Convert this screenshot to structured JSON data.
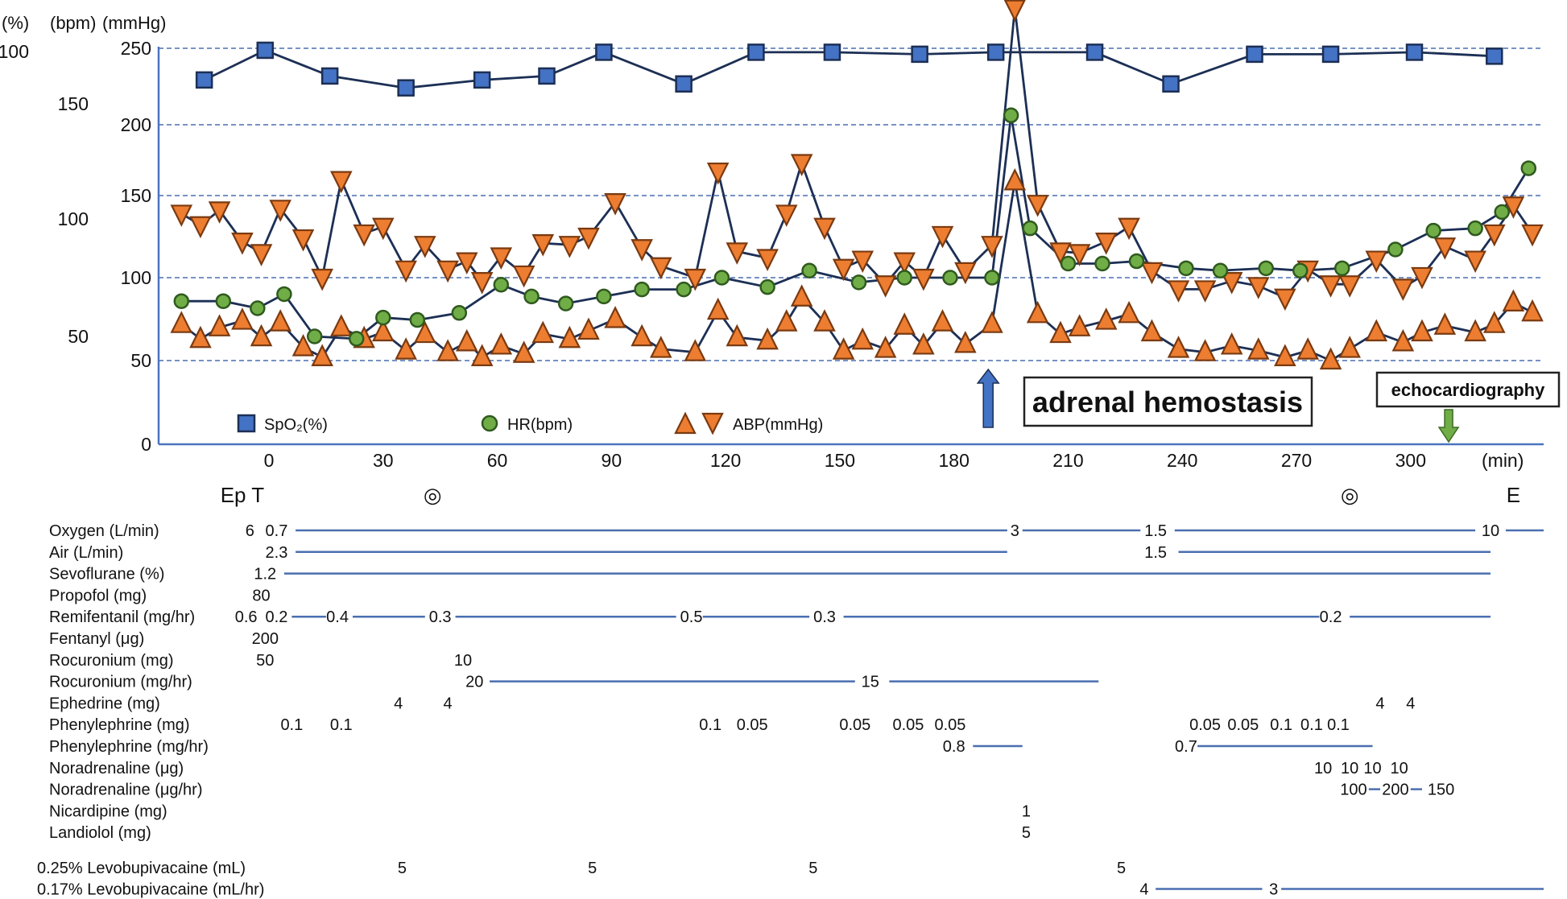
{
  "chart_data": {
    "type": "line",
    "title": "",
    "xlabel": "(min)",
    "x_unit_label": "(min)",
    "xlim": [
      -30,
      335
    ],
    "x_ticks": [
      0,
      30,
      60,
      90,
      120,
      150,
      180,
      210,
      240,
      270,
      300
    ],
    "x_tick_labels": [
      "0",
      "30",
      "60",
      "90",
      "120",
      "150",
      "180",
      "210",
      "240",
      "270",
      "300"
    ],
    "y_axes": [
      {
        "unit": "(%)",
        "tick_labels": [
          "100"
        ],
        "ticks": [
          100
        ]
      },
      {
        "unit": "(bpm)",
        "tick_labels": [
          "150",
          "100",
          "50"
        ],
        "ticks": [
          150,
          100,
          50
        ]
      },
      {
        "unit": "(mmHg)",
        "tick_labels": [
          "250",
          "200",
          "150",
          "100",
          "50",
          "0"
        ],
        "ticks": [
          250,
          200,
          150,
          100,
          50,
          0
        ]
      }
    ],
    "grid": true,
    "legend_position": "bottom-left",
    "legend": [
      {
        "label": "SpO₂(%)",
        "marker": "square",
        "color": "#4472c4"
      },
      {
        "label": "HR(bpm)",
        "marker": "circle",
        "color": "#70ad47"
      },
      {
        "label": "ABP(mmHg)",
        "marker": "triangle-up-down",
        "color": "#ed7d31"
      }
    ],
    "series": [
      {
        "name": "SpO2",
        "unit": "%",
        "x": [
          -17,
          -1,
          16,
          36,
          56,
          73,
          88,
          109,
          128,
          148,
          171,
          191,
          217,
          237,
          259,
          279,
          301,
          322
        ],
        "y": [
          92,
          99.5,
          93,
          90,
          92,
          93,
          99,
          91,
          99,
          99,
          98.5,
          99,
          99,
          91,
          98.5,
          98.5,
          99,
          98
        ]
      },
      {
        "name": "HR",
        "unit": "bpm",
        "x": [
          -23,
          -12,
          -3,
          4,
          12,
          23,
          30,
          39,
          50,
          61,
          69,
          78,
          88,
          98,
          109,
          119,
          131,
          142,
          155,
          167,
          179,
          190,
          195,
          200,
          210,
          219,
          228,
          241,
          250,
          262,
          271,
          282,
          296,
          306,
          317,
          324,
          331
        ],
        "y": [
          65,
          65,
          62,
          68,
          50,
          49,
          58,
          57,
          60,
          72,
          67,
          64,
          67,
          70,
          70,
          75,
          71,
          78,
          73,
          75,
          75,
          75,
          145,
          96,
          81,
          81,
          82,
          79,
          78,
          79,
          78,
          79,
          87,
          95,
          96,
          103,
          122
        ]
      },
      {
        "name": "ABP systolic",
        "unit": "mmHg",
        "x": [
          -23,
          -18,
          -13,
          -7,
          -2,
          3,
          9,
          14,
          19,
          25,
          30,
          36,
          41,
          47,
          52,
          56,
          61,
          67,
          72,
          79,
          84,
          91,
          98,
          103,
          112,
          118,
          123,
          131,
          136,
          140,
          146,
          151,
          156,
          162,
          167,
          172,
          177,
          183,
          190,
          196,
          202,
          208,
          213,
          220,
          226,
          232,
          239,
          246,
          253,
          260,
          267,
          273,
          279,
          284,
          291,
          298,
          303,
          309,
          317,
          322,
          327,
          332
        ],
        "y": [
          139,
          132,
          141,
          122,
          115,
          142,
          124,
          100,
          161,
          127,
          131,
          105,
          120,
          105,
          110,
          98,
          113,
          102,
          121,
          120,
          125,
          146,
          118,
          107,
          100,
          167,
          116,
          112,
          139,
          173,
          131,
          106,
          111,
          96,
          110,
          100,
          126,
          104,
          120,
          276,
          145,
          116,
          115,
          122,
          131,
          104,
          93,
          93,
          98,
          95,
          88,
          105,
          96,
          96,
          111,
          94,
          101,
          119,
          111,
          127,
          144,
          127
        ]
      },
      {
        "name": "ABP diastolic",
        "unit": "mmHg",
        "x": [
          -23,
          -18,
          -13,
          -7,
          -2,
          3,
          9,
          14,
          19,
          25,
          30,
          36,
          41,
          47,
          52,
          56,
          61,
          67,
          72,
          79,
          84,
          91,
          98,
          103,
          112,
          118,
          123,
          131,
          136,
          140,
          146,
          151,
          156,
          162,
          167,
          172,
          177,
          183,
          190,
          196,
          202,
          208,
          213,
          220,
          226,
          232,
          239,
          246,
          253,
          260,
          267,
          273,
          279,
          284,
          291,
          298,
          303,
          309,
          317,
          322,
          327,
          332
        ],
        "y": [
          72,
          63,
          70,
          74,
          64,
          73,
          58,
          52,
          70,
          63,
          67,
          56,
          66,
          55,
          61,
          52,
          59,
          54,
          66,
          63,
          68,
          75,
          64,
          57,
          55,
          80,
          64,
          62,
          73,
          88,
          73,
          56,
          62,
          57,
          71,
          59,
          73,
          60,
          72,
          160,
          78,
          66,
          70,
          74,
          78,
          67,
          57,
          55,
          59,
          56,
          52,
          56,
          50,
          57,
          67,
          61,
          67,
          71,
          67,
          72,
          85,
          79
        ]
      }
    ],
    "annotations": [
      {
        "text": "adrenal hemostasis",
        "x": 189,
        "arrow": "up",
        "color": "#4472c4"
      },
      {
        "text": "echocardiography",
        "x": 310,
        "arrow": "down",
        "color": "#70ad47"
      }
    ],
    "events": [
      {
        "text": "Ep T",
        "x": -7
      },
      {
        "text": "◎",
        "x": 43
      },
      {
        "text": "◎",
        "x": 284
      },
      {
        "text": "E",
        "x": 327
      }
    ]
  },
  "drug_table": {
    "rows": [
      {
        "label": "Oxygen (L/min)",
        "group": "main",
        "values": [
          {
            "t": -5,
            "v": "6"
          },
          {
            "t": 2,
            "v": "0.7"
          },
          {
            "t": 196,
            "v": "3"
          },
          {
            "t": 233,
            "v": "1.5"
          },
          {
            "t": 321,
            "v": "10"
          }
        ],
        "lines": [
          [
            7,
            194
          ],
          [
            198,
            229
          ],
          [
            238,
            317
          ],
          [
            325,
            335
          ]
        ]
      },
      {
        "label": "Air (L/min)",
        "group": "main",
        "values": [
          {
            "t": 2,
            "v": "2.3"
          },
          {
            "t": 233,
            "v": "1.5"
          }
        ],
        "lines": [
          [
            7,
            194
          ],
          [
            239,
            321
          ]
        ]
      },
      {
        "label": "Sevoflurane (%)",
        "group": "main",
        "values": [
          {
            "t": -1,
            "v": "1.2"
          }
        ],
        "lines": [
          [
            4,
            321
          ]
        ]
      },
      {
        "label": "Propofol (mg)",
        "group": "main",
        "values": [
          {
            "t": -2,
            "v": "80"
          }
        ],
        "lines": []
      },
      {
        "label": "Remifentanil (mg/hr)",
        "group": "main",
        "values": [
          {
            "t": -6,
            "v": "0.6"
          },
          {
            "t": 2,
            "v": "0.2"
          },
          {
            "t": 18,
            "v": "0.4"
          },
          {
            "t": 45,
            "v": "0.3"
          },
          {
            "t": 111,
            "v": "0.5"
          },
          {
            "t": 146,
            "v": "0.3"
          },
          {
            "t": 279,
            "v": "0.2"
          }
        ],
        "lines": [
          [
            6,
            15
          ],
          [
            22,
            41
          ],
          [
            49,
            107
          ],
          [
            114,
            142
          ],
          [
            151,
            276
          ],
          [
            284,
            321
          ]
        ]
      },
      {
        "label": "Fentanyl (μg)",
        "group": "main",
        "values": [
          {
            "t": -1,
            "v": "200"
          }
        ],
        "lines": []
      },
      {
        "label": "Rocuronium (mg)",
        "group": "main",
        "values": [
          {
            "t": -1,
            "v": "50"
          },
          {
            "t": 51,
            "v": "10"
          }
        ],
        "lines": []
      },
      {
        "label": "Rocuronium (mg/hr)",
        "group": "main",
        "values": [
          {
            "t": 54,
            "v": "20"
          },
          {
            "t": 158,
            "v": "15"
          }
        ],
        "lines": [
          [
            58,
            154
          ],
          [
            163,
            218
          ]
        ]
      },
      {
        "label": "Ephedrine (mg)",
        "group": "main",
        "values": [
          {
            "t": 34,
            "v": "4"
          },
          {
            "t": 47,
            "v": "4"
          },
          {
            "t": 292,
            "v": "4"
          },
          {
            "t": 300,
            "v": "4"
          }
        ],
        "lines": []
      },
      {
        "label": "Phenylephrine (mg)",
        "group": "main",
        "values": [
          {
            "t": 6,
            "v": "0.1"
          },
          {
            "t": 19,
            "v": "0.1"
          },
          {
            "t": 116,
            "v": "0.1"
          },
          {
            "t": 127,
            "v": "0.05"
          },
          {
            "t": 154,
            "v": "0.05"
          },
          {
            "t": 168,
            "v": "0.05"
          },
          {
            "t": 179,
            "v": "0.05"
          },
          {
            "t": 246,
            "v": "0.05"
          },
          {
            "t": 256,
            "v": "0.05"
          },
          {
            "t": 266,
            "v": "0.1"
          },
          {
            "t": 274,
            "v": "0.1"
          },
          {
            "t": 281,
            "v": "0.1"
          }
        ],
        "lines": []
      },
      {
        "label": "Phenylephrine (mg/hr)",
        "group": "main",
        "values": [
          {
            "t": 180,
            "v": "0.8"
          },
          {
            "t": 241,
            "v": "0.7"
          }
        ],
        "lines": [
          [
            185,
            198
          ],
          [
            244,
            290
          ]
        ]
      },
      {
        "label": "Noradrenaline (μg)",
        "group": "main",
        "values": [
          {
            "t": 277,
            "v": "10"
          },
          {
            "t": 284,
            "v": "10"
          },
          {
            "t": 290,
            "v": "10"
          },
          {
            "t": 297,
            "v": "10"
          }
        ],
        "lines": []
      },
      {
        "label": "Noradrenaline (μg/hr)",
        "group": "main",
        "values": [
          {
            "t": 285,
            "v": "100"
          },
          {
            "t": 296,
            "v": "200"
          },
          {
            "t": 308,
            "v": "150"
          }
        ],
        "lines": [
          [
            289,
            292
          ],
          [
            300,
            303
          ]
        ]
      },
      {
        "label": "Nicardipine (mg)",
        "group": "main",
        "values": [
          {
            "t": 199,
            "v": "1"
          }
        ],
        "lines": []
      },
      {
        "label": "Landiolol (mg)",
        "group": "main",
        "values": [
          {
            "t": 199,
            "v": "5"
          }
        ],
        "lines": []
      },
      {
        "label": "0.25% Levobupivacaine (mL)",
        "group": "regional",
        "values": [
          {
            "t": 35,
            "v": "5"
          },
          {
            "t": 85,
            "v": "5"
          },
          {
            "t": 143,
            "v": "5"
          },
          {
            "t": 224,
            "v": "5"
          }
        ],
        "lines": []
      },
      {
        "label": "0.17% Levobupivacaine (mL/hr)",
        "group": "regional",
        "values": [
          {
            "t": 230,
            "v": "4"
          },
          {
            "t": 264,
            "v": "3"
          }
        ],
        "lines": [
          [
            233,
            261
          ],
          [
            266,
            335
          ]
        ]
      }
    ]
  }
}
